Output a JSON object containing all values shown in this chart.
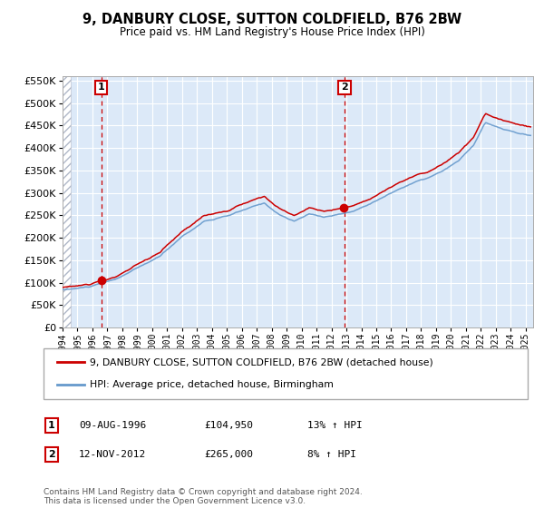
{
  "title": "9, DANBURY CLOSE, SUTTON COLDFIELD, B76 2BW",
  "subtitle": "Price paid vs. HM Land Registry's House Price Index (HPI)",
  "legend_line1": "9, DANBURY CLOSE, SUTTON COLDFIELD, B76 2BW (detached house)",
  "legend_line2": "HPI: Average price, detached house, Birmingham",
  "annotation1_label": "1",
  "annotation1_date": "09-AUG-1996",
  "annotation1_price": "£104,950",
  "annotation1_hpi": "13% ↑ HPI",
  "annotation1_year": 1996.6,
  "annotation1_value": 104950,
  "annotation2_label": "2",
  "annotation2_date": "12-NOV-2012",
  "annotation2_price": "£265,000",
  "annotation2_hpi": "8% ↑ HPI",
  "annotation2_year": 2012.87,
  "annotation2_value": 265000,
  "footer": "Contains HM Land Registry data © Crown copyright and database right 2024.\nThis data is licensed under the Open Government Licence v3.0.",
  "bg_color": "#dce9f8",
  "hatch_color": "#c8d8e8",
  "red_line_color": "#cc0000",
  "blue_line_color": "#6699cc",
  "grid_color": "#ffffff",
  "dashed_color": "#cc0000",
  "ylim_max": 560000,
  "ylim_min": 0,
  "xmin": 1994,
  "xmax": 2025.5
}
